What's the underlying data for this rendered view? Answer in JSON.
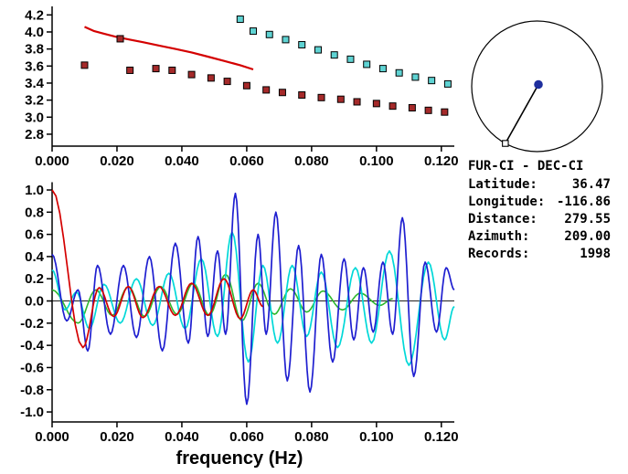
{
  "chart_data": [
    {
      "type": "scatter",
      "name": "dispersion-panel",
      "xlim": [
        0,
        0.124
      ],
      "ylim": [
        2.66,
        4.3
      ],
      "grid": false,
      "x_ticks": [
        {
          "v": 0.0,
          "label": "0.000"
        },
        {
          "v": 0.02,
          "label": "0.020"
        },
        {
          "v": 0.04,
          "label": "0.040"
        },
        {
          "v": 0.06,
          "label": "0.060"
        },
        {
          "v": 0.08,
          "label": "0.080"
        },
        {
          "v": 0.1,
          "label": "0.100"
        },
        {
          "v": 0.12,
          "label": "0.120"
        }
      ],
      "y_ticks": [
        {
          "v": 2.8,
          "label": "2.8"
        },
        {
          "v": 3.0,
          "label": "3.0"
        },
        {
          "v": 3.2,
          "label": "3.2"
        },
        {
          "v": 3.4,
          "label": "3.4"
        },
        {
          "v": 3.6,
          "label": "3.6"
        },
        {
          "v": 3.8,
          "label": "3.8"
        },
        {
          "v": 4.0,
          "label": "4.0"
        },
        {
          "v": 4.2,
          "label": "4.2"
        }
      ],
      "series": [
        {
          "name": "reference-dispersion-curve",
          "style": "line",
          "color": "#d40000",
          "width": 2.2,
          "points": [
            [
              0.01,
              4.06
            ],
            [
              0.013,
              4.01
            ],
            [
              0.016,
              3.98
            ],
            [
              0.02,
              3.94
            ],
            [
              0.024,
              3.91
            ],
            [
              0.028,
              3.88
            ],
            [
              0.033,
              3.84
            ],
            [
              0.038,
              3.8
            ],
            [
              0.043,
              3.76
            ],
            [
              0.048,
              3.71
            ],
            [
              0.053,
              3.66
            ],
            [
              0.058,
              3.61
            ],
            [
              0.062,
              3.56
            ]
          ]
        },
        {
          "name": "dark-red-group-velocity-squares",
          "style": "squares",
          "color": "#a52a2a",
          "points": [
            [
              0.01,
              3.61
            ],
            [
              0.021,
              3.92
            ],
            [
              0.024,
              3.55
            ],
            [
              0.032,
              3.57
            ],
            [
              0.037,
              3.55
            ],
            [
              0.043,
              3.5
            ],
            [
              0.049,
              3.46
            ],
            [
              0.054,
              3.42
            ],
            [
              0.06,
              3.37
            ],
            [
              0.066,
              3.32
            ],
            [
              0.071,
              3.29
            ],
            [
              0.077,
              3.26
            ],
            [
              0.083,
              3.23
            ],
            [
              0.089,
              3.21
            ],
            [
              0.094,
              3.18
            ],
            [
              0.1,
              3.16
            ],
            [
              0.105,
              3.13
            ],
            [
              0.111,
              3.11
            ],
            [
              0.116,
              3.08
            ],
            [
              0.121,
              3.06
            ]
          ]
        },
        {
          "name": "cyan-group-velocity-squares",
          "style": "squares",
          "color": "#5fd3d3",
          "points": [
            [
              0.058,
              4.15
            ],
            [
              0.062,
              4.01
            ],
            [
              0.067,
              3.97
            ],
            [
              0.072,
              3.91
            ],
            [
              0.077,
              3.85
            ],
            [
              0.082,
              3.79
            ],
            [
              0.087,
              3.73
            ],
            [
              0.092,
              3.68
            ],
            [
              0.097,
              3.62
            ],
            [
              0.102,
              3.57
            ],
            [
              0.107,
              3.52
            ],
            [
              0.112,
              3.47
            ],
            [
              0.117,
              3.43
            ],
            [
              0.122,
              3.39
            ]
          ]
        }
      ]
    },
    {
      "type": "line",
      "name": "waveform-panel",
      "xlabel": "frequency (Hz)",
      "xlim": [
        0,
        0.124
      ],
      "ylim": [
        -1.09,
        1.07
      ],
      "zero_line": true,
      "grid": false,
      "x_ticks": [
        {
          "v": 0.0,
          "label": "0.000"
        },
        {
          "v": 0.02,
          "label": "0.020"
        },
        {
          "v": 0.04,
          "label": "0.040"
        },
        {
          "v": 0.06,
          "label": "0.060"
        },
        {
          "v": 0.08,
          "label": "0.080"
        },
        {
          "v": 0.1,
          "label": "0.100"
        },
        {
          "v": 0.12,
          "label": "0.120"
        }
      ],
      "y_ticks": [
        {
          "v": -1.0,
          "label": "-1.0"
        },
        {
          "v": -0.8,
          "label": "-0.8"
        },
        {
          "v": -0.6,
          "label": "-0.6"
        },
        {
          "v": -0.4,
          "label": "-0.4"
        },
        {
          "v": -0.2,
          "label": "-0.2"
        },
        {
          "v": 0.0,
          "label": "0.0"
        },
        {
          "v": 0.2,
          "label": "0.2"
        },
        {
          "v": 0.4,
          "label": "0.4"
        },
        {
          "v": 0.6,
          "label": "0.6"
        },
        {
          "v": 0.8,
          "label": "0.8"
        },
        {
          "v": 1.0,
          "label": "1.0"
        }
      ],
      "series": [
        {
          "name": "green-trace",
          "style": "wave",
          "color": "#2eb82e",
          "width": 1.6,
          "extrema": [
            [
              0,
              0.1
            ],
            [
              0.008,
              -0.2
            ],
            [
              0.0135,
              0.1
            ],
            [
              0.0185,
              -0.13
            ],
            [
              0.0235,
              0.13
            ],
            [
              0.0285,
              -0.14
            ],
            [
              0.0335,
              0.13
            ],
            [
              0.0385,
              -0.12
            ],
            [
              0.0435,
              0.16
            ],
            [
              0.0485,
              -0.13
            ],
            [
              0.0535,
              0.24
            ],
            [
              0.0585,
              -0.18
            ],
            [
              0.0635,
              0.16
            ],
            [
              0.0685,
              -0.12
            ],
            [
              0.0735,
              0.11
            ],
            [
              0.0785,
              -0.1
            ],
            [
              0.0835,
              0.09
            ],
            [
              0.0895,
              -0.08
            ],
            [
              0.095,
              0.07
            ],
            [
              0.101,
              -0.04
            ],
            [
              0.105,
              0.02
            ]
          ]
        },
        {
          "name": "cyan-trace",
          "style": "wave",
          "color": "#00d8d8",
          "width": 1.7,
          "extrema": [
            [
              0,
              0.28
            ],
            [
              0.004,
              -0.08
            ],
            [
              0.0075,
              0.08
            ],
            [
              0.0115,
              -0.25
            ],
            [
              0.016,
              0.15
            ],
            [
              0.021,
              -0.2
            ],
            [
              0.026,
              0.2
            ],
            [
              0.031,
              -0.22
            ],
            [
              0.036,
              0.25
            ],
            [
              0.041,
              -0.25
            ],
            [
              0.046,
              0.38
            ],
            [
              0.051,
              -0.32
            ],
            [
              0.0555,
              0.62
            ],
            [
              0.0605,
              -0.55
            ],
            [
              0.065,
              0.32
            ],
            [
              0.0695,
              -0.38
            ],
            [
              0.074,
              0.32
            ],
            [
              0.0785,
              -0.32
            ],
            [
              0.083,
              0.26
            ],
            [
              0.088,
              -0.42
            ],
            [
              0.0935,
              0.3
            ],
            [
              0.0985,
              -0.38
            ],
            [
              0.104,
              0.45
            ],
            [
              0.11,
              -0.58
            ],
            [
              0.116,
              0.35
            ],
            [
              0.121,
              -0.35
            ],
            [
              0.124,
              -0.05
            ]
          ]
        },
        {
          "name": "blue-trace",
          "style": "wave",
          "color": "#1f1fd0",
          "width": 1.7,
          "extrema": [
            [
              0,
              0.42
            ],
            [
              0.0045,
              -0.18
            ],
            [
              0.008,
              0.1
            ],
            [
              0.011,
              -0.45
            ],
            [
              0.014,
              0.32
            ],
            [
              0.018,
              -0.3
            ],
            [
              0.022,
              0.32
            ],
            [
              0.026,
              -0.33
            ],
            [
              0.03,
              0.4
            ],
            [
              0.034,
              -0.45
            ],
            [
              0.038,
              0.52
            ],
            [
              0.042,
              -0.38
            ],
            [
              0.045,
              0.58
            ],
            [
              0.048,
              -0.32
            ],
            [
              0.051,
              0.45
            ],
            [
              0.0535,
              -0.3
            ],
            [
              0.0565,
              0.97
            ],
            [
              0.06,
              -0.93
            ],
            [
              0.0635,
              0.6
            ],
            [
              0.066,
              -0.3
            ],
            [
              0.069,
              0.8
            ],
            [
              0.0725,
              -0.72
            ],
            [
              0.076,
              0.5
            ],
            [
              0.0795,
              -0.82
            ],
            [
              0.083,
              0.42
            ],
            [
              0.0865,
              -0.55
            ],
            [
              0.09,
              0.38
            ],
            [
              0.093,
              -0.35
            ],
            [
              0.096,
              0.3
            ],
            [
              0.099,
              -0.28
            ],
            [
              0.102,
              0.35
            ],
            [
              0.105,
              -0.3
            ],
            [
              0.108,
              0.75
            ],
            [
              0.1115,
              -0.68
            ],
            [
              0.115,
              0.35
            ],
            [
              0.1185,
              -0.28
            ],
            [
              0.1215,
              0.3
            ],
            [
              0.124,
              0.1
            ]
          ]
        },
        {
          "name": "red-trace",
          "style": "wave",
          "color": "#d40000",
          "width": 1.7,
          "extrema": [
            [
              0,
              1.0
            ],
            [
              0.0095,
              -0.42
            ],
            [
              0.0145,
              0.12
            ],
            [
              0.019,
              -0.14
            ],
            [
              0.0235,
              0.13
            ],
            [
              0.028,
              -0.15
            ],
            [
              0.033,
              0.13
            ],
            [
              0.038,
              -0.13
            ],
            [
              0.043,
              0.16
            ],
            [
              0.048,
              -0.13
            ],
            [
              0.053,
              0.2
            ],
            [
              0.058,
              -0.16
            ],
            [
              0.062,
              0.1
            ],
            [
              0.065,
              -0.05
            ]
          ]
        }
      ]
    }
  ],
  "azimuth_diagram": {
    "azimuth_deg": 209,
    "circle_color": "#000000",
    "line_color": "#000000",
    "dot_color": "#1f2f9e",
    "end_marker": "open-square"
  },
  "info": {
    "title": "FUR-CI - DEC-CI",
    "rows": [
      {
        "label": "Latitude:",
        "value": "36.47"
      },
      {
        "label": "Longitude:",
        "value": "-116.86"
      },
      {
        "label": "Distance:",
        "value": "279.55"
      },
      {
        "label": "Azimuth:",
        "value": "209.00"
      },
      {
        "label": "Records:",
        "value": "1998"
      }
    ]
  }
}
